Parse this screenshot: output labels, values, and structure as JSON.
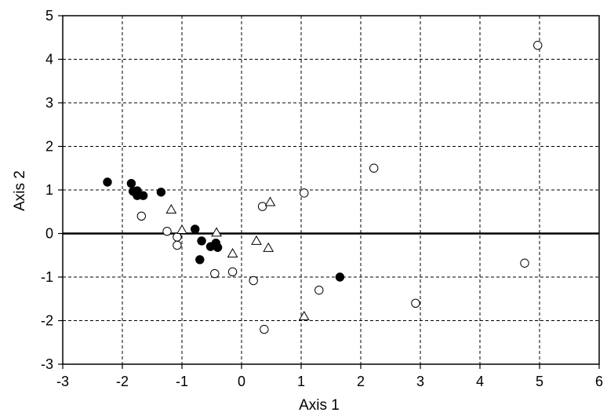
{
  "chart_data": {
    "type": "scatter",
    "xlabel": "Axis 1",
    "ylabel": "Axis 2",
    "xlim": [
      -3,
      6
    ],
    "ylim": [
      -3,
      5
    ],
    "x_ticks": [
      -3,
      -2,
      -1,
      0,
      1,
      2,
      3,
      4,
      5,
      6
    ],
    "y_ticks": [
      -3,
      -2,
      -1,
      0,
      1,
      2,
      3,
      4,
      5
    ],
    "x_tick_labels": [
      "-3",
      "-2",
      "-1",
      "0",
      "1",
      "2",
      "3",
      "4",
      "5",
      "6"
    ],
    "y_tick_labels": [
      "-3",
      "-2",
      "-1",
      "0",
      "1",
      "2",
      "3",
      "4",
      "5"
    ],
    "grid": "dashed",
    "zero_line": true,
    "series": [
      {
        "marker": "filled-circle",
        "color": "#000000",
        "points": [
          [
            -2.25,
            1.18
          ],
          [
            -1.85,
            1.15
          ],
          [
            -1.82,
            0.97
          ],
          [
            -1.75,
            0.98
          ],
          [
            -1.75,
            0.87
          ],
          [
            -1.65,
            0.87
          ],
          [
            -1.35,
            0.95
          ],
          [
            -0.78,
            0.1
          ],
          [
            -0.7,
            -0.6
          ],
          [
            -0.67,
            -0.17
          ],
          [
            -0.52,
            -0.3
          ],
          [
            -0.43,
            -0.22
          ],
          [
            -0.4,
            -0.32
          ],
          [
            1.65,
            -1.0
          ]
        ]
      },
      {
        "marker": "open-circle",
        "color": "#000000",
        "points": [
          [
            -1.68,
            0.4
          ],
          [
            -1.25,
            0.05
          ],
          [
            -1.08,
            -0.08
          ],
          [
            -1.08,
            -0.27
          ],
          [
            -0.45,
            -0.92
          ],
          [
            -0.15,
            -0.88
          ],
          [
            0.2,
            -1.08
          ],
          [
            0.35,
            0.62
          ],
          [
            0.38,
            -2.2
          ],
          [
            1.05,
            0.93
          ],
          [
            1.3,
            -1.3
          ],
          [
            2.22,
            1.5
          ],
          [
            2.92,
            -1.6
          ],
          [
            4.75,
            -0.68
          ],
          [
            4.97,
            4.32
          ]
        ]
      },
      {
        "marker": "open-triangle",
        "color": "#000000",
        "points": [
          [
            -1.18,
            0.55
          ],
          [
            -1.0,
            0.08
          ],
          [
            -0.42,
            0.02
          ],
          [
            -0.15,
            -0.46
          ],
          [
            0.25,
            -0.17
          ],
          [
            0.45,
            -0.33
          ],
          [
            0.48,
            0.72
          ],
          [
            1.05,
            -1.9
          ]
        ]
      }
    ]
  }
}
